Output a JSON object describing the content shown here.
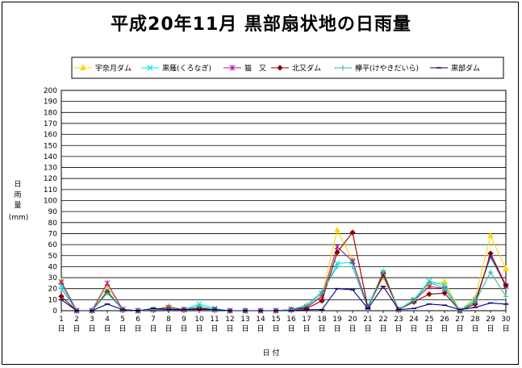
{
  "chart_data": {
    "type": "line",
    "title": "平成20年11月 黒部扇状地の日雨量",
    "xlabel": "日 付",
    "ylabel": "日雨量",
    "ylabel_unit": "(mm)",
    "x_suffix": "日",
    "ylim": [
      0,
      200
    ],
    "ytick_step": 10,
    "grid": true,
    "legend_position": "top",
    "x": [
      1,
      2,
      3,
      4,
      5,
      6,
      7,
      8,
      9,
      10,
      11,
      12,
      13,
      14,
      15,
      16,
      17,
      18,
      19,
      20,
      21,
      22,
      23,
      24,
      25,
      26,
      27,
      28,
      29,
      30
    ],
    "series": [
      {
        "name": "宇奈月ダム",
        "color": "#FFD700",
        "marker": "triangle",
        "values": [
          27,
          0,
          0,
          22,
          1,
          0,
          1,
          4,
          1,
          3,
          1,
          0,
          0,
          0,
          0,
          1,
          3,
          14,
          73,
          46,
          3,
          30,
          1,
          10,
          24,
          26,
          0,
          12,
          68,
          38
        ]
      },
      {
        "name": "黒薙(くろなぎ)",
        "color": "#00E5EE",
        "marker": "x",
        "values": [
          23,
          0,
          0,
          18,
          1,
          0,
          1,
          2,
          1,
          6,
          2,
          0,
          0,
          0,
          0,
          1,
          4,
          16,
          43,
          44,
          4,
          35,
          1,
          10,
          27,
          23,
          0,
          10,
          48,
          23
        ]
      },
      {
        "name": "猫　又",
        "color": "#A0189A",
        "marker": "star",
        "values": [
          26,
          0,
          0,
          25,
          1,
          0,
          1,
          3,
          1,
          2,
          1,
          0,
          0,
          0,
          0,
          1,
          3,
          13,
          58,
          45,
          3,
          32,
          1,
          9,
          22,
          20,
          0,
          8,
          50,
          22
        ]
      },
      {
        "name": "北又ダム",
        "color": "#8B0000",
        "marker": "diamond",
        "values": [
          13,
          0,
          0,
          17,
          1,
          0,
          1,
          1,
          1,
          2,
          1,
          0,
          0,
          0,
          0,
          1,
          2,
          9,
          53,
          71,
          3,
          34,
          1,
          8,
          15,
          16,
          0,
          6,
          52,
          23
        ]
      },
      {
        "name": "欅平(けやきだいら)",
        "color": "#33B8A0",
        "marker": "plus",
        "values": [
          20,
          0,
          0,
          16,
          1,
          0,
          1,
          1,
          1,
          4,
          1,
          0,
          0,
          0,
          0,
          1,
          5,
          17,
          40,
          40,
          2,
          36,
          1,
          9,
          26,
          20,
          0,
          8,
          35,
          13
        ]
      },
      {
        "name": "黒部ダム",
        "color": "#000080",
        "marker": "dash",
        "values": [
          10,
          0,
          0,
          6,
          1,
          0,
          2,
          1,
          1,
          1,
          1,
          0,
          0,
          0,
          0,
          0,
          1,
          1,
          20,
          19,
          2,
          22,
          1,
          2,
          6,
          5,
          1,
          3,
          7,
          6
        ]
      }
    ]
  }
}
